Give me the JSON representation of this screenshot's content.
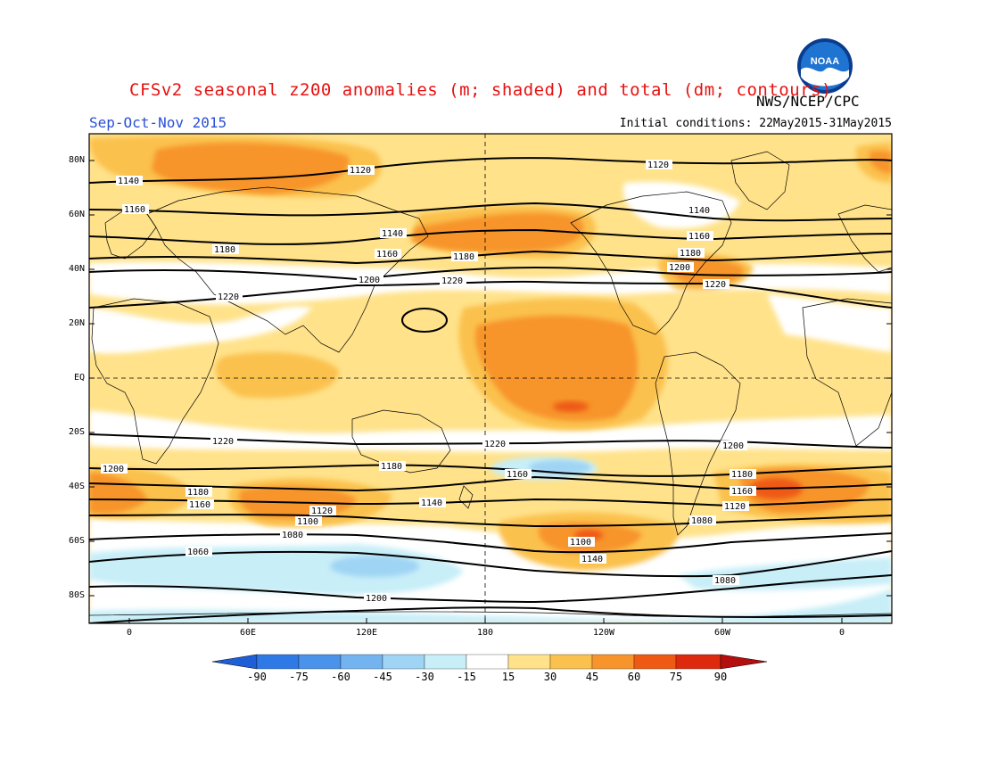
{
  "header": {
    "title": "CFSv2 seasonal z200 anomalies (m; shaded) and total (dm; contours)",
    "agency": "NWS/NCEP/CPC",
    "season": "Sep-Oct-Nov 2015",
    "initial_conditions": "Initial conditions: 22May2015-31May2015",
    "logo_text": "NOAA"
  },
  "axes": {
    "lat_labels": [
      "80N",
      "60N",
      "40N",
      "20N",
      "EQ",
      "20S",
      "40S",
      "60S",
      "80S"
    ],
    "lat_values": [
      80,
      60,
      40,
      20,
      0,
      -20,
      -40,
      -60,
      -80
    ],
    "lon_labels": [
      "0",
      "60E",
      "120E",
      "180",
      "120W",
      "60W",
      "0"
    ],
    "lon_values": [
      0,
      60,
      120,
      180,
      240,
      300,
      360
    ],
    "lon_range": [
      -20,
      385
    ],
    "lat_range": [
      -90,
      90
    ]
  },
  "colorbar": {
    "labels": [
      "-90",
      "-75",
      "-60",
      "-45",
      "-30",
      "-15",
      "15",
      "30",
      "45",
      "60",
      "75",
      "90"
    ],
    "colors": [
      "#1e5fd8",
      "#2f79e6",
      "#4a92ea",
      "#73b3f0",
      "#9fd4f4",
      "#c8eef8",
      "#ffffff",
      "#ffe28a",
      "#fbc14e",
      "#f7942c",
      "#ee5a14",
      "#dd2a0e",
      "#b50e0e"
    ]
  },
  "contour_labels": [
    "1140",
    "1160",
    "1180",
    "1220",
    "1120",
    "1140",
    "1160",
    "1180",
    "1200",
    "1220",
    "1120",
    "1140",
    "1160",
    "1180",
    "1200",
    "1220",
    "1220",
    "1220",
    "1200",
    "1200",
    "1180",
    "1180",
    "1160",
    "1160",
    "1140",
    "1120",
    "1100",
    "1080",
    "1060",
    "1200",
    "1180",
    "1160",
    "1120",
    "1100",
    "1140",
    "1080",
    "1080"
  ]
}
